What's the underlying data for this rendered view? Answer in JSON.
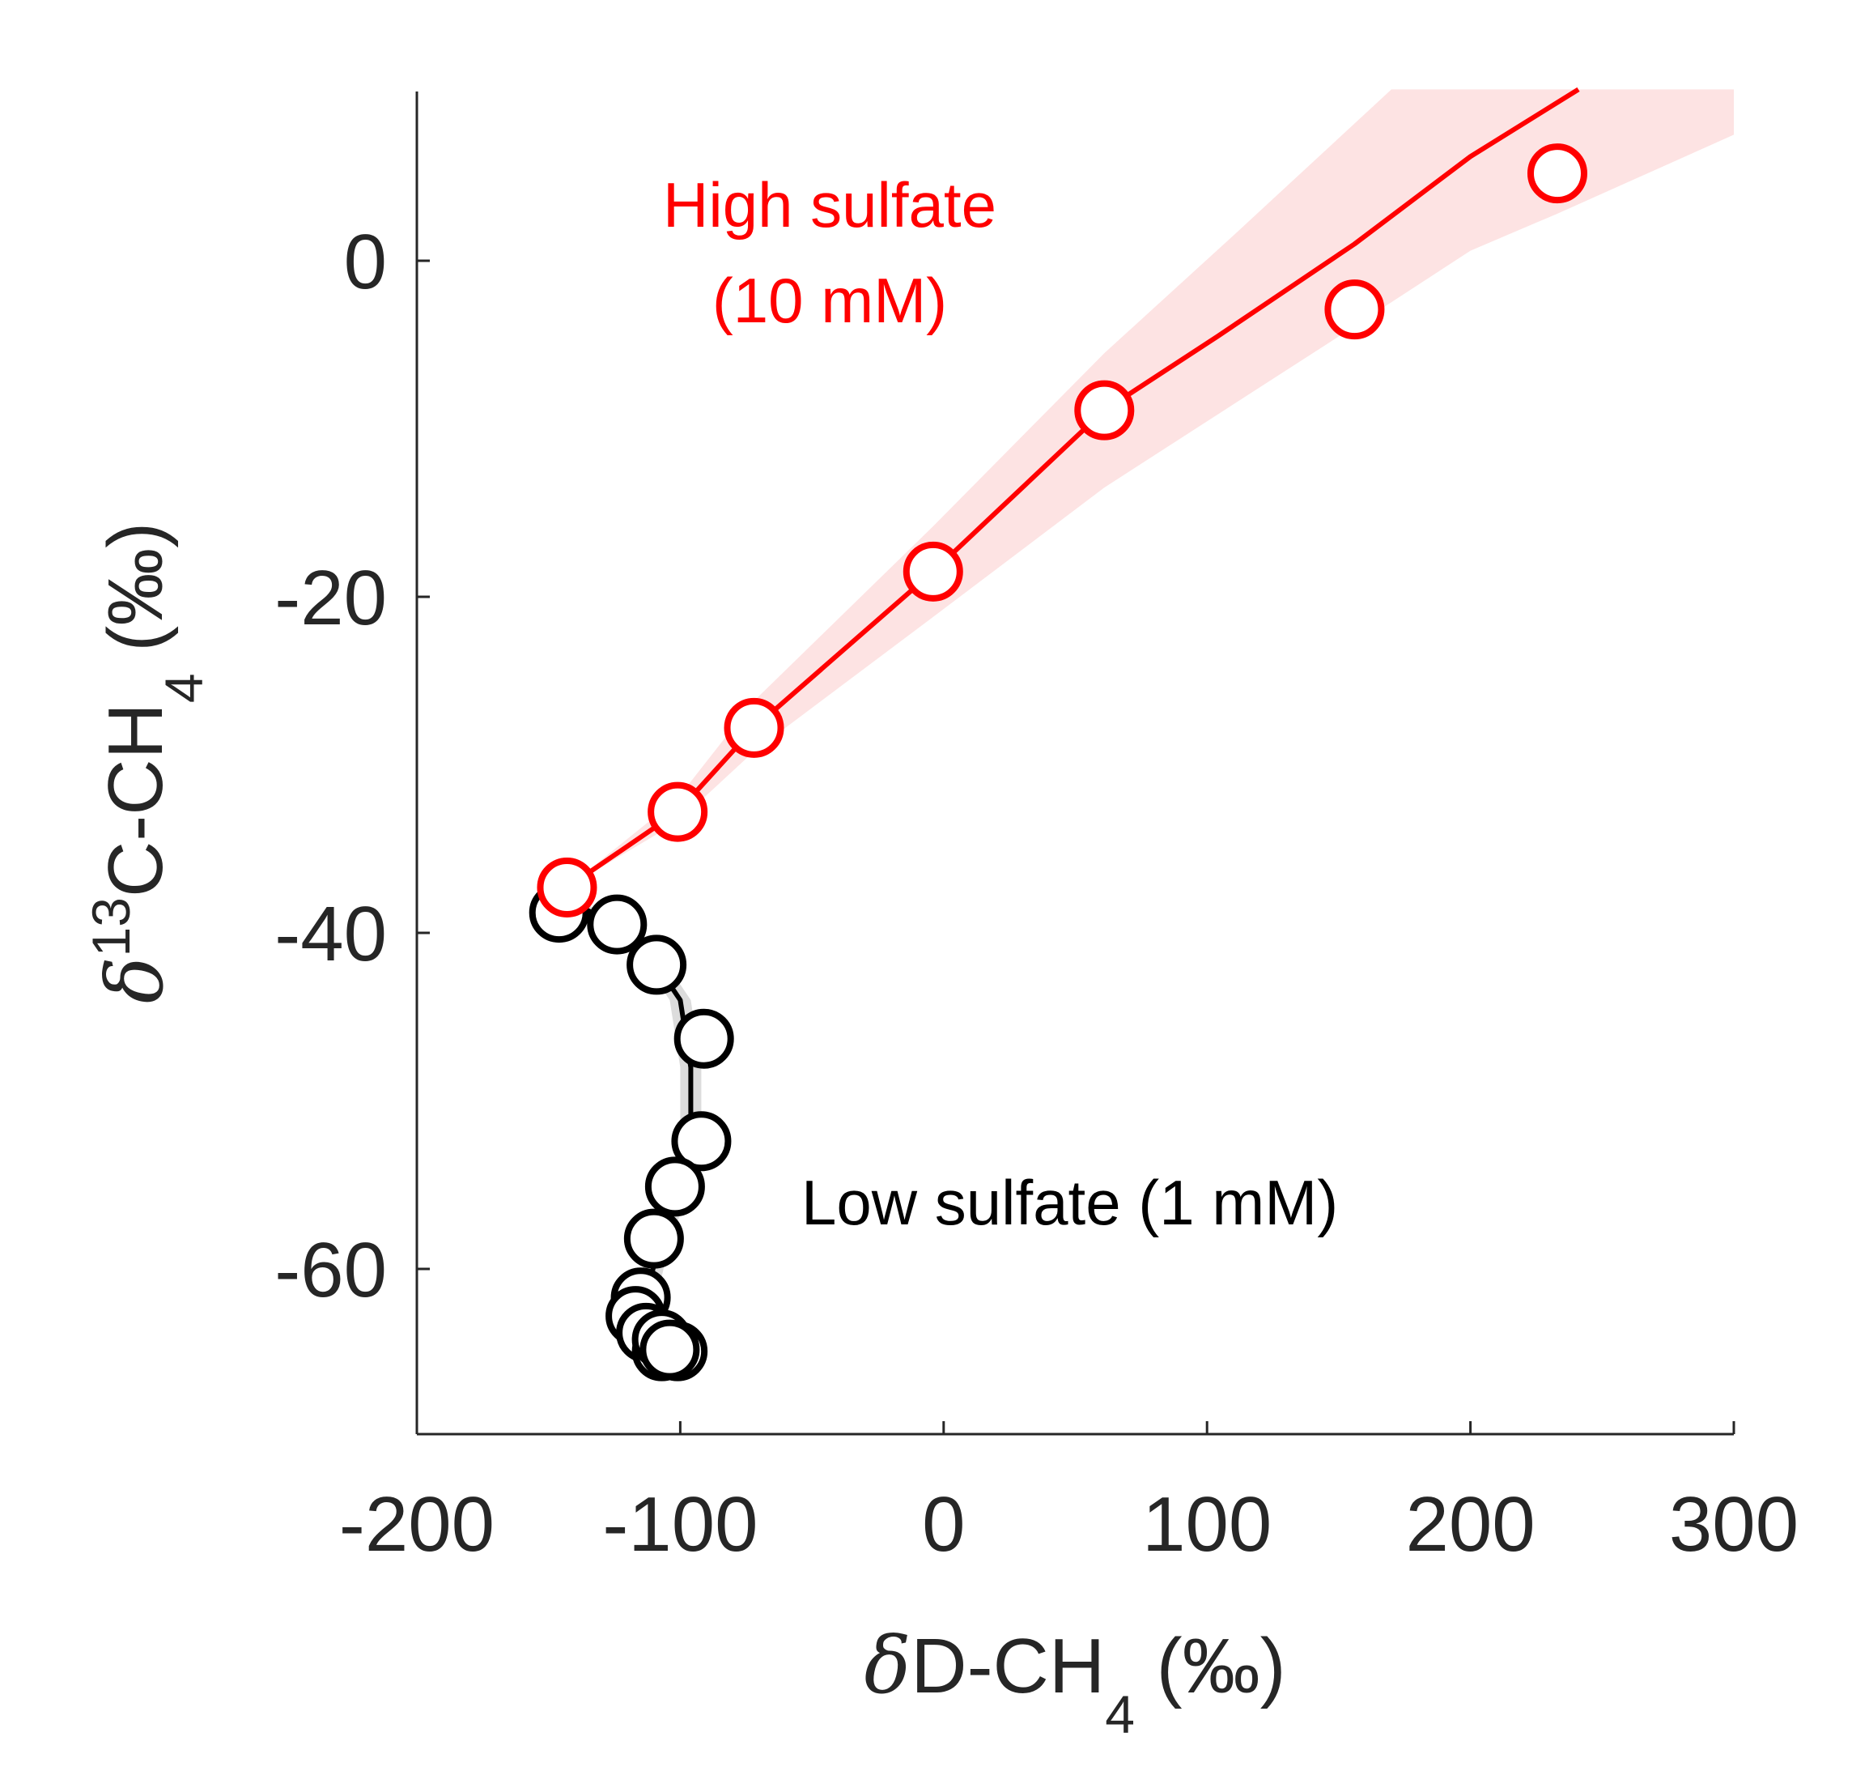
{
  "chart_data": {
    "type": "scatter",
    "xlim": [
      -200,
      300
    ],
    "ylim": [
      -70,
      10
    ],
    "xticks": [
      "-200",
      "-100",
      "0",
      "100",
      "200",
      "300"
    ],
    "yticks": [
      "0",
      "-20",
      "-40",
      "-60"
    ],
    "xlabel": {
      "delta": "δ",
      "main": "D-CH",
      "sub": "4",
      "unit": " (‰)"
    },
    "ylabel": {
      "delta": "δ",
      "sup": "13",
      "main": "C-CH",
      "sub": "4",
      "unit": " (‰)"
    },
    "colors": {
      "high": "#ff0000",
      "low": "#000000",
      "high_band": "#fde3e3",
      "low_band": "#dcdcdc",
      "axis": "#262626"
    },
    "grid": false,
    "annotations": {
      "high_line1": "High sulfate",
      "high_line2": "(10 mM)",
      "low": "Low sulfate (1 mM)"
    },
    "series": [
      {
        "name": "High sulfate (10 mM)",
        "color": "#ff0000",
        "points": [
          [
            -143,
            -37.3
          ],
          [
            -101,
            -32.8
          ],
          [
            -72,
            -27.8
          ],
          [
            -4,
            -18.5
          ],
          [
            61,
            -8.9
          ],
          [
            156,
            -2.9
          ],
          [
            233,
            5.2
          ]
        ],
        "fit": [
          [
            -143,
            -37.3
          ],
          [
            -101,
            -32.8
          ],
          [
            -72,
            -27.8
          ],
          [
            -4,
            -18.5
          ],
          [
            61,
            -8.9
          ],
          [
            104,
            -4.5
          ],
          [
            156,
            1.0
          ],
          [
            200,
            6.2
          ],
          [
            241,
            10.2
          ]
        ],
        "band_upper": [
          [
            -143,
            -37.3
          ],
          [
            -101,
            -32.0
          ],
          [
            -72,
            -26.2
          ],
          [
            -4,
            -15.8
          ],
          [
            61,
            -5.5
          ],
          [
            110,
            1.5
          ],
          [
            170,
            10.2
          ]
        ],
        "band_lower": [
          [
            -143,
            -37.3
          ],
          [
            -101,
            -33.4
          ],
          [
            -72,
            -29.2
          ],
          [
            -4,
            -21.2
          ],
          [
            61,
            -13.5
          ],
          [
            156,
            -3.9
          ],
          [
            200,
            0.6
          ],
          [
            233,
            2.8
          ],
          [
            300,
            7.5
          ]
        ],
        "band_top_right": [
          [
            300,
            10.2
          ]
        ]
      },
      {
        "name": "Low sulfate (1 mM)",
        "color": "#000000",
        "points": [
          [
            -146,
            -38.8
          ],
          [
            -124,
            -39.5
          ],
          [
            -109,
            -41.9
          ],
          [
            -91,
            -46.3
          ],
          [
            -92,
            -52.4
          ],
          [
            -102,
            -55.1
          ],
          [
            -110,
            -58.2
          ],
          [
            -115,
            -61.7
          ],
          [
            -117,
            -62.8
          ],
          [
            -113,
            -63.8
          ],
          [
            -107,
            -64.9
          ],
          [
            -101,
            -64.9
          ],
          [
            -107,
            -64.2
          ],
          [
            -104,
            -64.8
          ]
        ],
        "fit": [
          [
            -143,
            -38.0
          ],
          [
            -124,
            -39.6
          ],
          [
            -109,
            -41.9
          ],
          [
            -100,
            -44.0
          ],
          [
            -96,
            -48.0
          ],
          [
            -96,
            -52.0
          ],
          [
            -101,
            -55.5
          ],
          [
            -108,
            -58.4
          ],
          [
            -113,
            -61.8
          ],
          [
            -113,
            -64.0
          ],
          [
            -108,
            -65.0
          ]
        ]
      }
    ]
  }
}
